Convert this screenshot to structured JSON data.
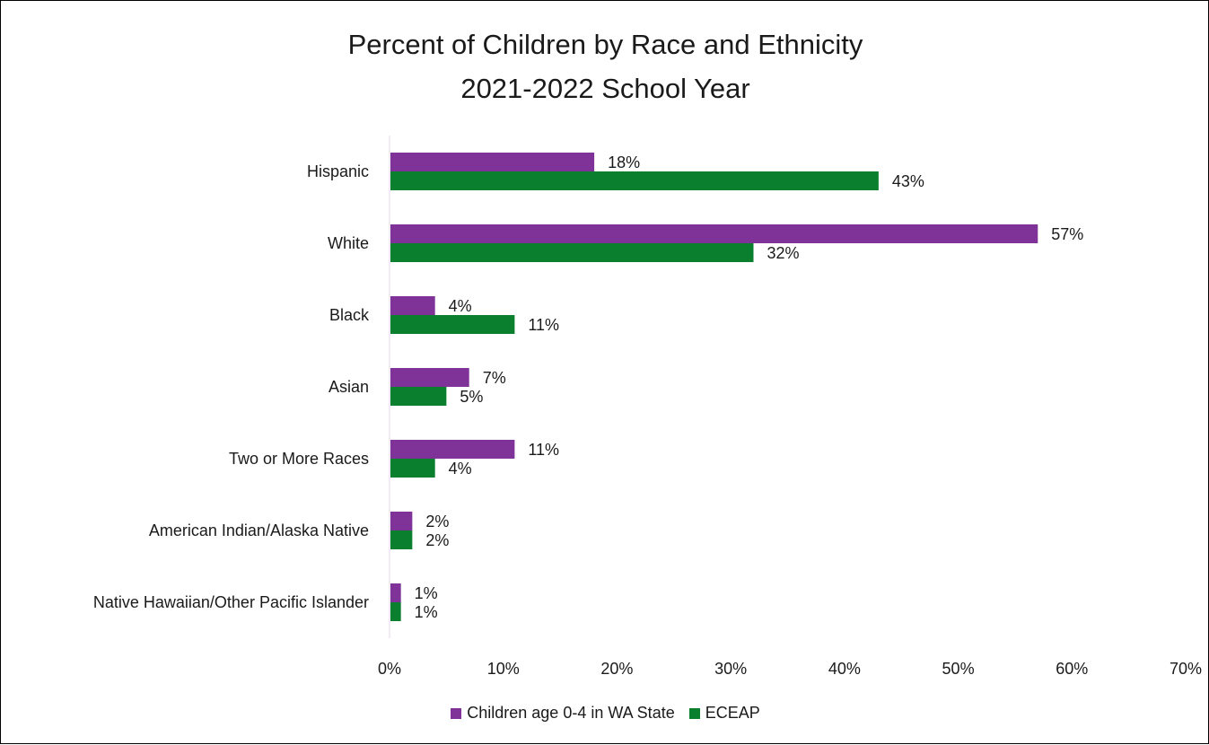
{
  "chart_data": {
    "type": "bar",
    "orientation": "horizontal",
    "title": "Percent of Children by Race and Ethnicity",
    "subtitle": "2021-2022 School Year",
    "categories": [
      "Hispanic",
      "White",
      "Black",
      "Asian",
      "Two or More Races",
      "American Indian/Alaska Native",
      "Native Hawaiian/Other Pacific Islander"
    ],
    "series": [
      {
        "name": "Children age 0-4 in WA State",
        "color": "#7f3399",
        "values": [
          18,
          57,
          4,
          7,
          11,
          2,
          1
        ],
        "labels": [
          "18%",
          "57%",
          "4%",
          "7%",
          "11%",
          "2%",
          "1%"
        ]
      },
      {
        "name": "ECEAP",
        "color": "#0a7f2e",
        "values": [
          43,
          32,
          11,
          5,
          4,
          2,
          1
        ],
        "labels": [
          "43%",
          "32%",
          "11%",
          "5%",
          "4%",
          "2%",
          "1%"
        ]
      }
    ],
    "xlim": [
      0,
      70
    ],
    "xticks": [
      "0%",
      "10%",
      "20%",
      "30%",
      "40%",
      "50%",
      "60%",
      "70%"
    ],
    "grid": false,
    "legend_position": "bottom"
  }
}
